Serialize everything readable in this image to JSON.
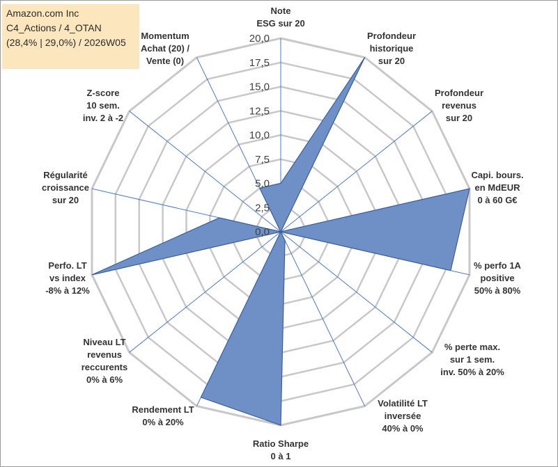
{
  "info": {
    "line1": "Amazon.com Inc",
    "line2": "C4_Actions / 4_OTAN",
    "line3": "(28,4% | 29,0%) / 2026W05"
  },
  "chart_data": {
    "type": "radar",
    "r_min": 0,
    "r_max": 20,
    "r_step": 2.5,
    "tick_labels": [
      "0,0",
      "2,5",
      "5,0",
      "7,5",
      "10,0",
      "12,5",
      "15,0",
      "17,5",
      "20,0"
    ],
    "axes": [
      {
        "lines": [
          "Note",
          "ESG sur 20"
        ]
      },
      {
        "lines": [
          "Profondeur",
          "historique",
          "sur 20"
        ]
      },
      {
        "lines": [
          "Profondeur",
          "revenus",
          "sur 20"
        ]
      },
      {
        "lines": [
          "Capi. bours.",
          "en MdEUR",
          "0 à 60 G€"
        ]
      },
      {
        "lines": [
          "% perfo 1A",
          "positive",
          "50% à 80%"
        ]
      },
      {
        "lines": [
          "% perte max.",
          "sur 1 sem.",
          "inv. 50% à 20%"
        ]
      },
      {
        "lines": [
          "Volatilité LT",
          "inversée",
          "40% à 0%"
        ]
      },
      {
        "lines": [
          "Ratio Sharpe",
          "0 à 1"
        ]
      },
      {
        "lines": [
          "Rendement LT",
          "0% à 20%"
        ]
      },
      {
        "lines": [
          "Niveau LT",
          "revenus",
          "reccurents",
          "0% à 6%"
        ]
      },
      {
        "lines": [
          "Perfo. LT",
          "vs index",
          "-8% à 12%"
        ]
      },
      {
        "lines": [
          "Régularité",
          "croissance",
          "sur 20"
        ]
      },
      {
        "lines": [
          "Z-score",
          "10 sem.",
          "inv. 2 à -2"
        ]
      },
      {
        "lines": [
          "Momentum",
          "Achat (20) /",
          "Vente (0)"
        ]
      }
    ],
    "series": [
      {
        "name": "Amazon.com Inc",
        "values": [
          5.0,
          20.0,
          0.0,
          20.0,
          18.0,
          0.0,
          1.0,
          20.0,
          19.0,
          0.0,
          20.0,
          6.5,
          0.0,
          5.0
        ]
      }
    ],
    "colors": {
      "fill": "#6f90c6",
      "stroke": "#3a5f9e",
      "grid": "#c8c8c8",
      "spoke": "#4a7ac8"
    }
  }
}
